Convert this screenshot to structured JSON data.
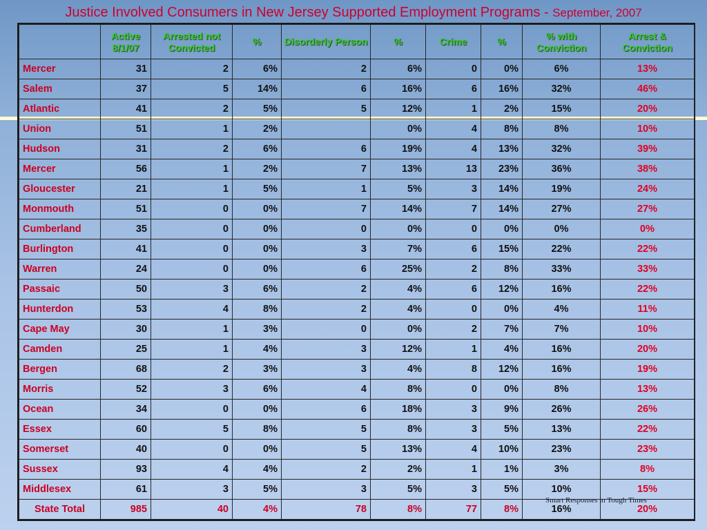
{
  "title": {
    "main": "Justice Involved Consumers in New Jersey Supported Employment Programs - ",
    "date": "September, 2007"
  },
  "table": {
    "headers": [
      "",
      "Active 8/1/07",
      "Arrested not Convicted",
      "%",
      "Disorderly Person",
      "%",
      "Crime",
      "%",
      "% with Conviction",
      "Arrest & Conviction"
    ],
    "rows": [
      [
        "Mercer",
        "31",
        "2",
        "6%",
        "2",
        "6%",
        "0",
        "0%",
        "6%",
        "13%"
      ],
      [
        "Salem",
        "37",
        "5",
        "14%",
        "6",
        "16%",
        "6",
        "16%",
        "32%",
        "46%"
      ],
      [
        "Atlantic",
        "41",
        "2",
        "5%",
        "5",
        "12%",
        "1",
        "2%",
        "15%",
        "20%"
      ],
      [
        "Union",
        "51",
        "1",
        "2%",
        "",
        "0%",
        "4",
        "8%",
        "8%",
        "10%"
      ],
      [
        "Hudson",
        "31",
        "2",
        "6%",
        "6",
        "19%",
        "4",
        "13%",
        "32%",
        "39%"
      ],
      [
        "Mercer",
        "56",
        "1",
        "2%",
        "7",
        "13%",
        "13",
        "23%",
        "36%",
        "38%"
      ],
      [
        "Gloucester",
        "21",
        "1",
        "5%",
        "1",
        "5%",
        "3",
        "14%",
        "19%",
        "24%"
      ],
      [
        "Monmouth",
        "51",
        "0",
        "0%",
        "7",
        "14%",
        "7",
        "14%",
        "27%",
        "27%"
      ],
      [
        "Cumberland",
        "35",
        "0",
        "0%",
        "0",
        "0%",
        "0",
        "0%",
        "0%",
        "0%"
      ],
      [
        "Burlington",
        "41",
        "0",
        "0%",
        "3",
        "7%",
        "6",
        "15%",
        "22%",
        "22%"
      ],
      [
        "Warren",
        "24",
        "0",
        "0%",
        "6",
        "25%",
        "2",
        "8%",
        "33%",
        "33%"
      ],
      [
        "Passaic",
        "50",
        "3",
        "6%",
        "2",
        "4%",
        "6",
        "12%",
        "16%",
        "22%"
      ],
      [
        "Hunterdon",
        "53",
        "4",
        "8%",
        "2",
        "4%",
        "0",
        "0%",
        "4%",
        "11%"
      ],
      [
        "Cape May",
        "30",
        "1",
        "3%",
        "0",
        "0%",
        "2",
        "7%",
        "7%",
        "10%"
      ],
      [
        "Camden",
        "25",
        "1",
        "4%",
        "3",
        "12%",
        "1",
        "4%",
        "16%",
        "20%"
      ],
      [
        "Bergen",
        "68",
        "2",
        "3%",
        "3",
        "4%",
        "8",
        "12%",
        "16%",
        "19%"
      ],
      [
        "Morris",
        "52",
        "3",
        "6%",
        "4",
        "8%",
        "0",
        "0%",
        "8%",
        "13%"
      ],
      [
        "Ocean",
        "34",
        "0",
        "0%",
        "6",
        "18%",
        "3",
        "9%",
        "26%",
        "26%"
      ],
      [
        "Essex",
        "60",
        "5",
        "8%",
        "5",
        "8%",
        "3",
        "5%",
        "13%",
        "22%"
      ],
      [
        "Somerset",
        "40",
        "0",
        "0%",
        "5",
        "13%",
        "4",
        "10%",
        "23%",
        "23%"
      ],
      [
        "Sussex",
        "93",
        "4",
        "4%",
        "2",
        "2%",
        "1",
        "1%",
        "3%",
        "8%"
      ],
      [
        "Middlesex",
        "61",
        "3",
        "5%",
        "3",
        "5%",
        "3",
        "5%",
        "10%",
        "15%"
      ]
    ],
    "total": [
      "State Total",
      "985",
      "40",
      "4%",
      "78",
      "8%",
      "77",
      "8%",
      "16%",
      "20%"
    ]
  },
  "footer": "Smart Responses in Tough Times",
  "colors": {
    "title": "#cc0033",
    "header": "#33cc33",
    "county": "#cc0022",
    "highlight": "#e00022",
    "divider": "#fffbd6"
  }
}
